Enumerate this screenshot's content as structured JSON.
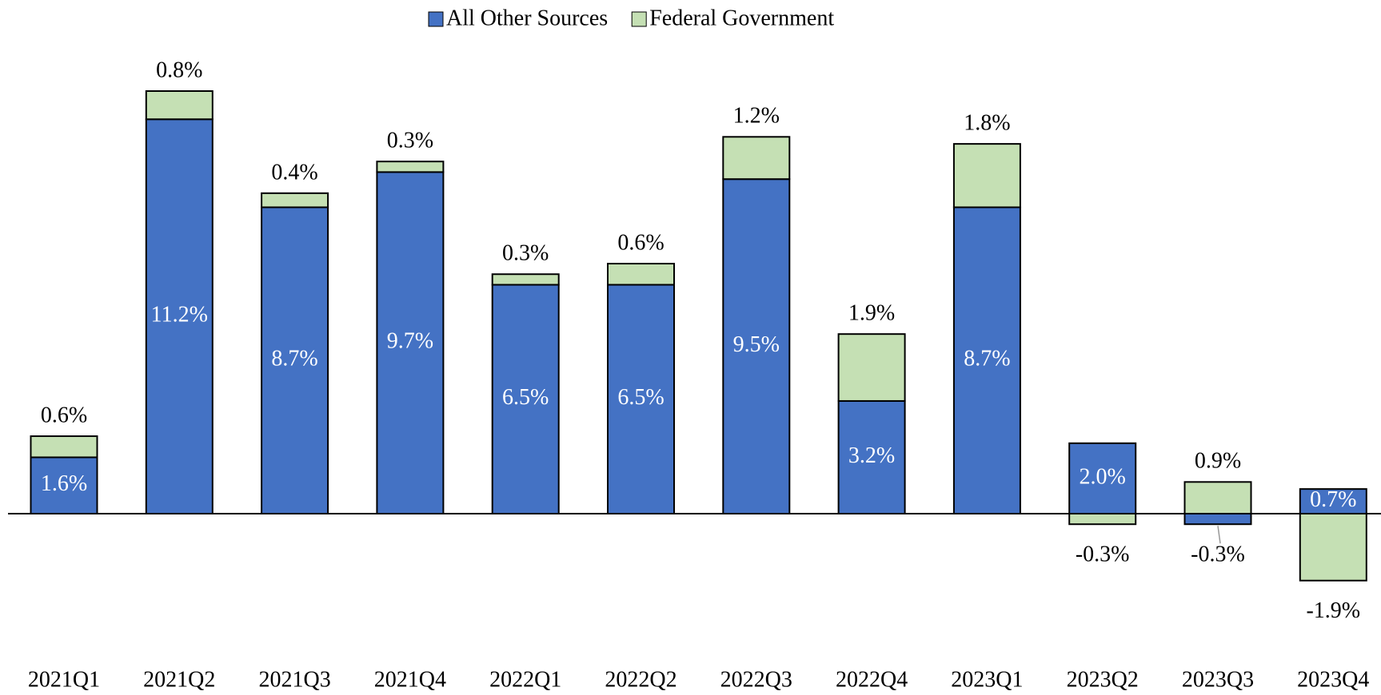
{
  "chart_data": {
    "type": "stacked_bar",
    "categories": [
      "2021Q1",
      "2021Q2",
      "2021Q3",
      "2021Q4",
      "2022Q1",
      "2022Q2",
      "2022Q3",
      "2022Q4",
      "2023Q1",
      "2023Q2",
      "2023Q3",
      "2023Q4"
    ],
    "series": [
      {
        "name": "All Other Sources",
        "color": "#4472c4",
        "values": [
          1.6,
          11.2,
          8.7,
          9.7,
          6.5,
          6.5,
          9.5,
          3.2,
          8.7,
          2.0,
          -0.3,
          0.7
        ],
        "value_labels": [
          "1.6%",
          "11.2%",
          "8.7%",
          "9.7%",
          "6.5%",
          "6.5%",
          "9.5%",
          "3.2%",
          "8.7%",
          "2.0%",
          "-0.3%",
          "0.7%"
        ]
      },
      {
        "name": "Federal Government",
        "color": "#c5e0b4",
        "values": [
          0.6,
          0.8,
          0.4,
          0.3,
          0.3,
          0.6,
          1.2,
          1.9,
          1.8,
          -0.3,
          0.9,
          -1.9
        ],
        "value_labels": [
          "0.6%",
          "0.8%",
          "0.4%",
          "0.3%",
          "0.3%",
          "0.6%",
          "1.2%",
          "1.9%",
          "1.8%",
          "-0.3%",
          "0.9%",
          "-1.9%"
        ]
      }
    ],
    "legend": "top"
  }
}
